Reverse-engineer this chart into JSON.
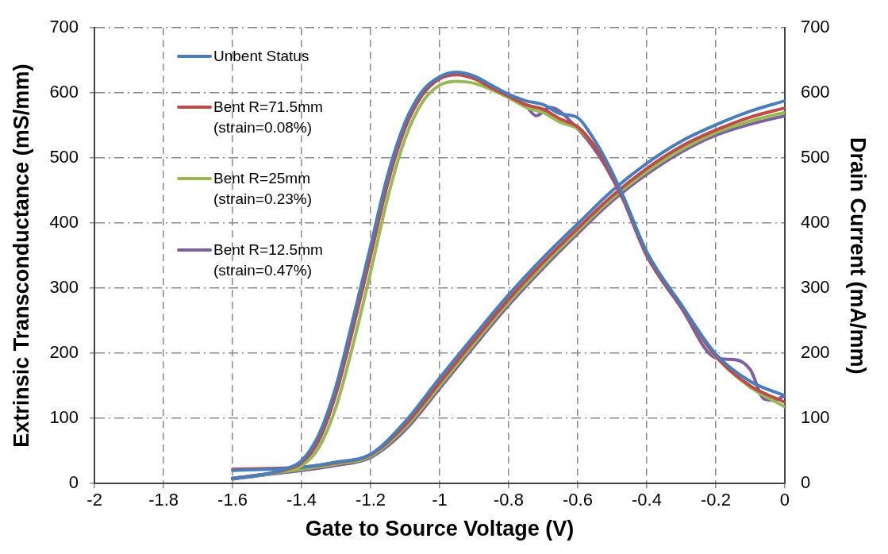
{
  "chart_data": {
    "type": "line",
    "xlabel": "Gate to Source Voltage (V)",
    "ylabel": "Extrinsic Transconductance (mS/mm)",
    "y2label": "Drain Current (mA/mm)",
    "xlim": [
      -2,
      0
    ],
    "xticks": [
      -2,
      -1.8,
      -1.6,
      -1.4,
      -1.2,
      -1,
      -0.8,
      -0.6,
      -0.4,
      -0.2,
      0
    ],
    "ylim": [
      0,
      700
    ],
    "yticks": [
      0,
      100,
      200,
      300,
      400,
      500,
      600,
      700
    ],
    "y2lim": [
      0,
      700
    ],
    "y2ticks": [
      0,
      100,
      200,
      300,
      400,
      500,
      600,
      700
    ],
    "grid": true,
    "legend": "top left",
    "marker": "none",
    "line_style": "solid",
    "series": [
      {
        "name": "Unbent Status",
        "color": "#4a7ebb",
        "x": [
          -1.6,
          -1.5,
          -1.45,
          -1.4,
          -1.35,
          -1.3,
          -1.25,
          -1.2,
          -1.15,
          -1.1,
          -1.05,
          -1,
          -0.95,
          -0.9,
          -0.85,
          -0.8,
          -0.75,
          -0.7,
          -0.65,
          -0.6,
          -0.56,
          -0.52,
          -0.47,
          -0.4,
          -0.3,
          -0.2,
          -0.1,
          0
        ],
        "values": [
          8,
          15,
          22,
          35,
          75,
          150,
          255,
          365,
          475,
          555,
          603,
          625,
          632,
          626,
          612,
          598,
          588,
          582,
          568,
          562,
          535,
          499,
          444,
          356,
          275,
          199,
          157,
          135
        ]
      },
      {
        "name": "Bent R=71.5mm (strain=0.08%)",
        "color": "#be4b48",
        "x": [
          -1.6,
          -1.5,
          -1.45,
          -1.4,
          -1.35,
          -1.3,
          -1.25,
          -1.2,
          -1.15,
          -1.1,
          -1.05,
          -1,
          -0.95,
          -0.9,
          -0.85,
          -0.8,
          -0.75,
          -0.7,
          -0.65,
          -0.6,
          -0.56,
          -0.52,
          -0.47,
          -0.4,
          -0.3,
          -0.2,
          -0.1,
          0
        ],
        "values": [
          8,
          15,
          21,
          32,
          68,
          140,
          243,
          352,
          465,
          548,
          598,
          622,
          628,
          622,
          608,
          595,
          582,
          575,
          560,
          548,
          525,
          492,
          440,
          352,
          272,
          196,
          150,
          125
        ]
      },
      {
        "name": "Bent R=25mm (strain=0.23%)",
        "color": "#98b954",
        "x": [
          -1.6,
          -1.5,
          -1.45,
          -1.4,
          -1.35,
          -1.3,
          -1.25,
          -1.2,
          -1.15,
          -1.1,
          -1.05,
          -1,
          -0.95,
          -0.9,
          -0.85,
          -0.8,
          -0.75,
          -0.7,
          -0.65,
          -0.6,
          -0.56,
          -0.52,
          -0.47,
          -0.4,
          -0.3,
          -0.2,
          -0.1,
          0
        ],
        "values": [
          8,
          14,
          19,
          27,
          55,
          118,
          215,
          325,
          440,
          530,
          586,
          612,
          618,
          615,
          605,
          593,
          578,
          570,
          555,
          545,
          525,
          495,
          442,
          355,
          273,
          195,
          148,
          118
        ]
      },
      {
        "name": "Bent R=12.5mm (strain=0.47%)",
        "color": "#7d60a0",
        "x": [
          -1.6,
          -1.5,
          -1.45,
          -1.4,
          -1.35,
          -1.3,
          -1.25,
          -1.2,
          -1.15,
          -1.1,
          -1.05,
          -1,
          -0.95,
          -0.9,
          -0.85,
          -0.8,
          -0.75,
          -0.72,
          -0.68,
          -0.6,
          -0.56,
          -0.52,
          -0.47,
          -0.4,
          -0.3,
          -0.2,
          -0.14,
          -0.1,
          -0.06,
          -0.03,
          0
        ],
        "values": [
          7,
          14,
          20,
          31,
          66,
          138,
          240,
          350,
          462,
          546,
          597,
          622,
          630,
          625,
          610,
          596,
          580,
          565,
          578,
          545,
          520,
          488,
          438,
          350,
          270,
          193,
          190,
          175,
          130,
          128,
          135
        ]
      },
      {
        "color": "#4a7ebb",
        "axis": "y2",
        "x": [
          -1.6,
          -1.5,
          -1.4,
          -1.3,
          -1.2,
          -1.1,
          -1,
          -0.9,
          -0.8,
          -0.7,
          -0.6,
          -0.5,
          -0.4,
          -0.3,
          -0.2,
          -0.1,
          0
        ],
        "values": [
          20,
          22,
          25,
          33,
          45,
          95,
          162,
          227,
          290,
          347,
          399,
          450,
          492,
          526,
          551,
          572,
          588
        ]
      },
      {
        "color": "#be4b48",
        "axis": "y2",
        "x": [
          -1.6,
          -1.5,
          -1.4,
          -1.3,
          -1.2,
          -1.1,
          -1,
          -0.9,
          -0.8,
          -0.7,
          -0.6,
          -0.5,
          -0.4,
          -0.3,
          -0.2,
          -0.1,
          0
        ],
        "values": [
          22,
          23,
          25,
          32,
          44,
          90,
          155,
          220,
          283,
          340,
          392,
          442,
          484,
          518,
          543,
          563,
          577
        ]
      },
      {
        "color": "#98b954",
        "axis": "y2",
        "x": [
          -1.6,
          -1.5,
          -1.4,
          -1.3,
          -1.2,
          -1.1,
          -1,
          -0.9,
          -0.8,
          -0.7,
          -0.6,
          -0.5,
          -0.4,
          -0.3,
          -0.2,
          -0.1,
          0
        ],
        "values": [
          8,
          15,
          22,
          30,
          42,
          86,
          150,
          215,
          278,
          335,
          388,
          438,
          479,
          513,
          539,
          557,
          570
        ]
      },
      {
        "color": "#7d60a0",
        "axis": "y2",
        "x": [
          -1.6,
          -1.5,
          -1.4,
          -1.3,
          -1.2,
          -1.1,
          -1,
          -0.9,
          -0.8,
          -0.7,
          -0.6,
          -0.5,
          -0.4,
          -0.3,
          -0.2,
          -0.1,
          0
        ],
        "values": [
          8,
          14,
          20,
          28,
          40,
          82,
          146,
          211,
          274,
          331,
          384,
          434,
          475,
          509,
          535,
          552,
          565
        ]
      }
    ]
  }
}
